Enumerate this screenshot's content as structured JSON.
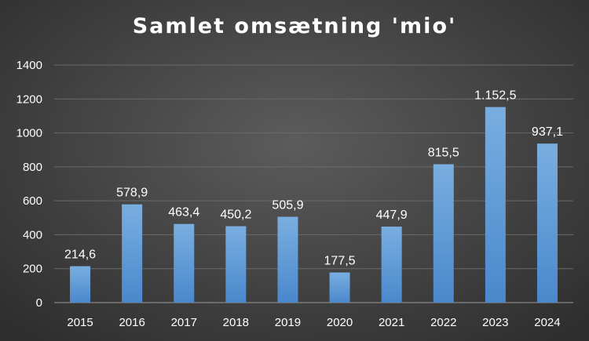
{
  "chart_data": {
    "type": "bar",
    "title": "Samlet omsætning 'mio'",
    "xlabel": "",
    "ylabel": "",
    "categories": [
      "2015",
      "2016",
      "2017",
      "2018",
      "2019",
      "2020",
      "2021",
      "2022",
      "2023",
      "2024"
    ],
    "values": [
      214.6,
      578.9,
      463.4,
      450.2,
      505.9,
      177.5,
      447.9,
      815.5,
      1152.5,
      937.1
    ],
    "value_labels": [
      "214,6",
      "578,9",
      "463,4",
      "450,2",
      "505,9",
      "177,5",
      "447,9",
      "815,5",
      "1.152,5",
      "937,1"
    ],
    "ylim": [
      0,
      1400
    ],
    "yticks": [
      0,
      200,
      400,
      600,
      800,
      1000,
      1200,
      1400
    ],
    "grid": true,
    "legend": "none",
    "colors": {
      "bar_top": "#7aaee0",
      "bar_bottom": "#4a88cc",
      "text": "#ffffff",
      "background": "#474747"
    }
  }
}
